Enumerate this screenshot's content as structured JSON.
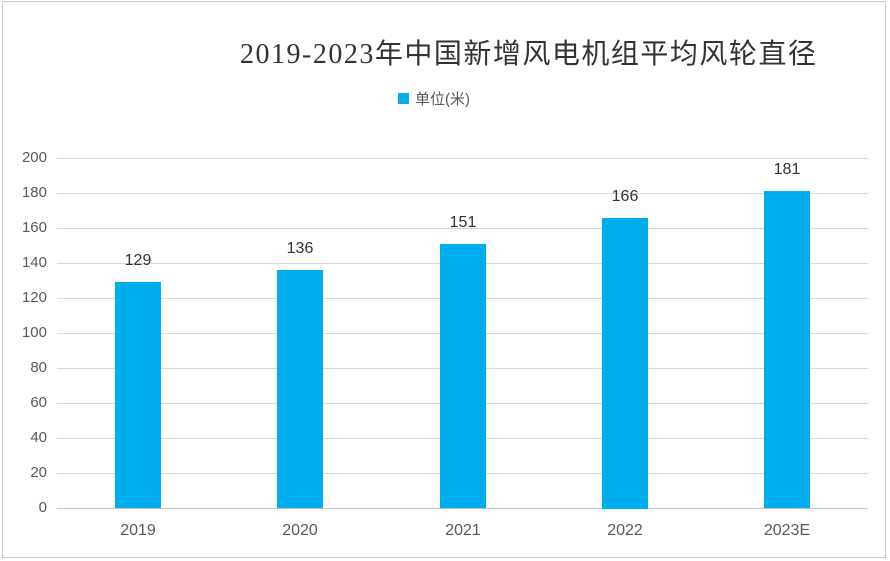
{
  "chart": {
    "title": "2019-2023年中国新增风电机组平均风轮直径",
    "legend": "单位(米)"
  },
  "chart_data": {
    "type": "bar",
    "title": "2019-2023年中国新增风电机组平均风轮直径",
    "legend": [
      "单位(米)"
    ],
    "categories": [
      "2019",
      "2020",
      "2021",
      "2022",
      "2023E"
    ],
    "values": [
      129,
      136,
      151,
      166,
      181
    ],
    "yticks": [
      0,
      20,
      40,
      60,
      80,
      100,
      120,
      140,
      160,
      180,
      200
    ],
    "ylim": [
      0,
      200
    ],
    "xlabel": "",
    "ylabel": "",
    "grid": true,
    "legend_position": "top",
    "data_labels": true,
    "colors": {
      "bar": "#00AEEF",
      "grid": "#d9d9d9",
      "axis_text": "#595959",
      "value_label": "#333333",
      "title_text": "#333333",
      "frame_border": "#cccccc"
    }
  }
}
